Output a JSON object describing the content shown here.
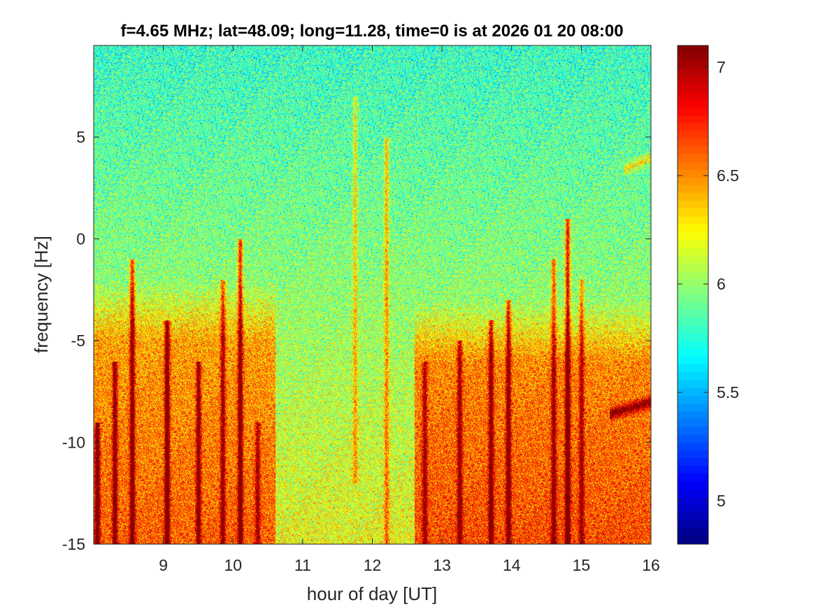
{
  "chart_data": {
    "type": "heatmap",
    "title": "f=4.65 MHz;  lat=48.09; long=11.28, time=0 is at 2026 01 20 08:00",
    "xlabel": "hour of day [UT]",
    "ylabel": "frequency [Hz]",
    "xlim": [
      8,
      16
    ],
    "ylim": [
      -15,
      9.5
    ],
    "xticks": [
      9,
      10,
      11,
      12,
      13,
      14,
      15,
      16
    ],
    "xtick_labels": [
      "9",
      "10",
      "11",
      "12",
      "13",
      "14",
      "15",
      "16"
    ],
    "yticks": [
      5,
      0,
      -5,
      -10,
      -15
    ],
    "ytick_labels": [
      "5",
      "0",
      "-5",
      "-10",
      "-15"
    ],
    "colorbar": {
      "colormap": "jet",
      "clim": [
        4.8,
        7.1
      ],
      "ticks": [
        7,
        6.5,
        6,
        5.5,
        5
      ],
      "tick_labels": [
        "7",
        "6.5",
        "6",
        "5.5",
        "5"
      ]
    },
    "grid": false,
    "features": [
      {
        "kind": "vertical streak",
        "hour": 8.05,
        "freq_range": [
          -15,
          -9
        ],
        "strength": 0.9
      },
      {
        "kind": "vertical streak",
        "hour": 8.3,
        "freq_range": [
          -15,
          -6
        ],
        "strength": 0.8
      },
      {
        "kind": "vertical streak",
        "hour": 8.55,
        "freq_range": [
          -15,
          -1
        ],
        "strength": 0.9
      },
      {
        "kind": "vertical streak",
        "hour": 9.05,
        "freq_range": [
          -15,
          -4
        ],
        "strength": 1.0
      },
      {
        "kind": "vertical streak",
        "hour": 9.5,
        "freq_range": [
          -15,
          -6
        ],
        "strength": 0.8
      },
      {
        "kind": "vertical streak",
        "hour": 9.85,
        "freq_range": [
          -15,
          -2
        ],
        "strength": 0.7
      },
      {
        "kind": "vertical streak",
        "hour": 10.1,
        "freq_range": [
          -15,
          0
        ],
        "strength": 0.9
      },
      {
        "kind": "vertical streak",
        "hour": 10.35,
        "freq_range": [
          -15,
          -9
        ],
        "strength": 0.6
      },
      {
        "kind": "vertical streak",
        "hour": 11.75,
        "freq_range": [
          -12,
          7
        ],
        "strength": 0.4
      },
      {
        "kind": "vertical streak",
        "hour": 12.2,
        "freq_range": [
          -15,
          5
        ],
        "strength": 0.5
      },
      {
        "kind": "vertical streak",
        "hour": 12.75,
        "freq_range": [
          -15,
          -6
        ],
        "strength": 0.6
      },
      {
        "kind": "vertical streak",
        "hour": 13.25,
        "freq_range": [
          -15,
          -5
        ],
        "strength": 0.7
      },
      {
        "kind": "vertical streak",
        "hour": 13.7,
        "freq_range": [
          -15,
          -4
        ],
        "strength": 0.8
      },
      {
        "kind": "vertical streak",
        "hour": 13.95,
        "freq_range": [
          -15,
          -3
        ],
        "strength": 0.8
      },
      {
        "kind": "vertical streak",
        "hour": 14.6,
        "freq_range": [
          -15,
          -1
        ],
        "strength": 0.7
      },
      {
        "kind": "vertical streak",
        "hour": 14.8,
        "freq_range": [
          -15,
          1
        ],
        "strength": 1.0
      },
      {
        "kind": "vertical streak",
        "hour": 15.0,
        "freq_range": [
          -15,
          -2
        ],
        "strength": 0.6
      },
      {
        "kind": "elevated region",
        "hour_range": [
          12.6,
          16
        ],
        "freq_range": [
          -15,
          -3
        ],
        "strength": 0.45
      },
      {
        "kind": "elevated region",
        "hour_range": [
          8,
          10.6
        ],
        "freq_range": [
          -15,
          -2
        ],
        "strength": 0.4
      },
      {
        "kind": "curved trace",
        "hour_range": [
          15.4,
          16
        ],
        "freq_range": [
          -9,
          -8
        ],
        "strength": 0.8
      },
      {
        "kind": "curved trace",
        "hour_range": [
          15.6,
          16
        ],
        "freq_range": [
          3,
          4
        ],
        "strength": 0.5
      }
    ]
  }
}
